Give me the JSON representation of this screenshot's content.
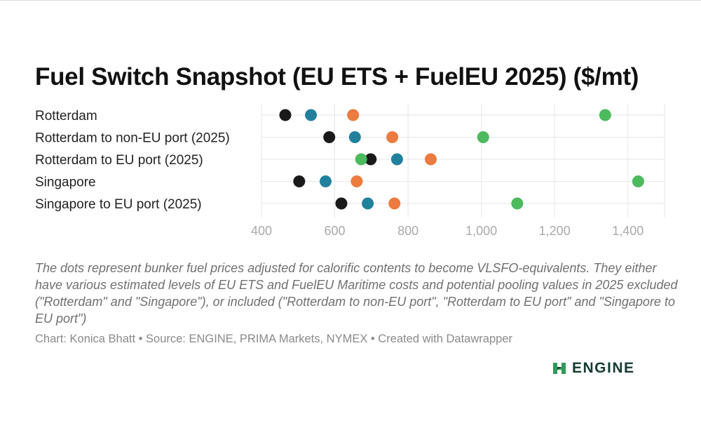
{
  "title": "Fuel Switch Snapshot (EU ETS + FuelEU 2025) ($/mt)",
  "chart_data": {
    "type": "scatter",
    "subtype": "dot-plot",
    "title": "Fuel Switch Snapshot (EU ETS + FuelEU 2025) ($/mt)",
    "categories": [
      "Rotterdam",
      "Rotterdam to non-EU port (2025)",
      "Rotterdam to EU port (2025)",
      "Singapore",
      "Singapore to EU port (2025)"
    ],
    "xlim": [
      400,
      1500
    ],
    "xticks": [
      400,
      600,
      800,
      1000,
      1200,
      1400
    ],
    "xtick_labels": [
      "400",
      "600",
      "800",
      "1,000",
      "1,200",
      "1,400"
    ],
    "grid": true,
    "legend": "none",
    "series": [
      {
        "color": "#1a1a1a",
        "values": [
          465,
          585,
          698,
          503,
          618
        ]
      },
      {
        "color": "#21819d",
        "values": [
          535,
          655,
          770,
          575,
          690
        ]
      },
      {
        "color": "#ec7b3f",
        "values": [
          650,
          757,
          862,
          660,
          763
        ]
      },
      {
        "color": "#4cba5d",
        "values": [
          1338,
          1005,
          672,
          1428,
          1098
        ]
      }
    ]
  },
  "note": "The dots represent bunker fuel prices adjusted for calorific contents to become VLSFO-equivalents. They either have various estimated levels of EU ETS and FuelEU Maritime costs and potential pooling values in 2025 excluded (\"Rotterdam\" and \"Singapore\"), or included (\"Rotterdam to non-EU port\", \"Rotterdam to EU port\" and \"Singapore to EU port\")",
  "credit": "Chart: Konica Bhatt • Source: ENGINE, PRIMA Markets, NYMEX • Created with Datawrapper",
  "logo": {
    "text": "ENGINE",
    "icon": "engine-logo-icon",
    "color": "#143c33"
  }
}
